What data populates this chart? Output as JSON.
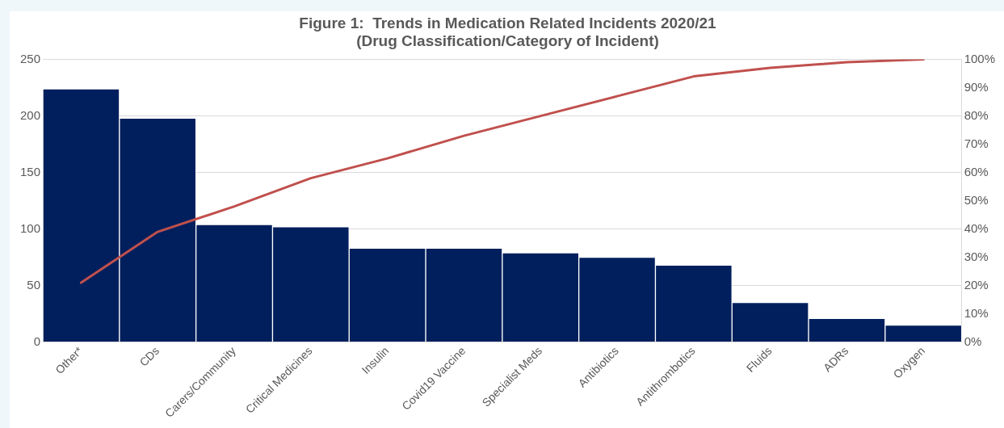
{
  "chart_data": {
    "type": "bar",
    "title": "Figure 1:  Trends in Medication Related Incidents 2020/21",
    "subtitle": "(Drug Classification/Category of Incident)",
    "categories": [
      "Other*",
      "CDs",
      "Carers/Community",
      "Critical Medicines",
      "Insulin",
      "Covid19 Vaccine",
      "Specialist Meds",
      "Antibiotics",
      "Antithrombotics",
      "Fluids",
      "ADRs",
      "Oxygen"
    ],
    "series": [
      {
        "color": "#001f5c",
        "values": [
          224,
          198,
          104,
          102,
          83,
          83,
          79,
          75,
          68,
          35,
          21,
          15
        ]
      },
      {
        "type": "line",
        "axis": "y2",
        "color": "#c0504d",
        "values": [
          21,
          39,
          48,
          58,
          65,
          73,
          80,
          87,
          94,
          97,
          99,
          100
        ]
      }
    ],
    "ylim": [
      0,
      250
    ],
    "yticks": [
      0,
      50,
      100,
      150,
      200,
      250
    ],
    "y2lim": [
      0,
      100
    ],
    "y2ticks": [
      {
        "value": 0,
        "label": "0%"
      },
      {
        "value": 10,
        "label": "10%"
      },
      {
        "value": 20,
        "label": "20%"
      },
      {
        "value": 30,
        "label": "30%"
      },
      {
        "value": 40,
        "label": "40%"
      },
      {
        "value": 50,
        "label": "50%"
      },
      {
        "value": 60,
        "label": "60%"
      },
      {
        "value": 70,
        "label": "70%"
      },
      {
        "value": 80,
        "label": "80%"
      },
      {
        "value": 90,
        "label": "90%"
      },
      {
        "value": 100,
        "label": "100%"
      }
    ],
    "grid": "y",
    "legend": false,
    "marker": "none",
    "line_style": "solid"
  }
}
